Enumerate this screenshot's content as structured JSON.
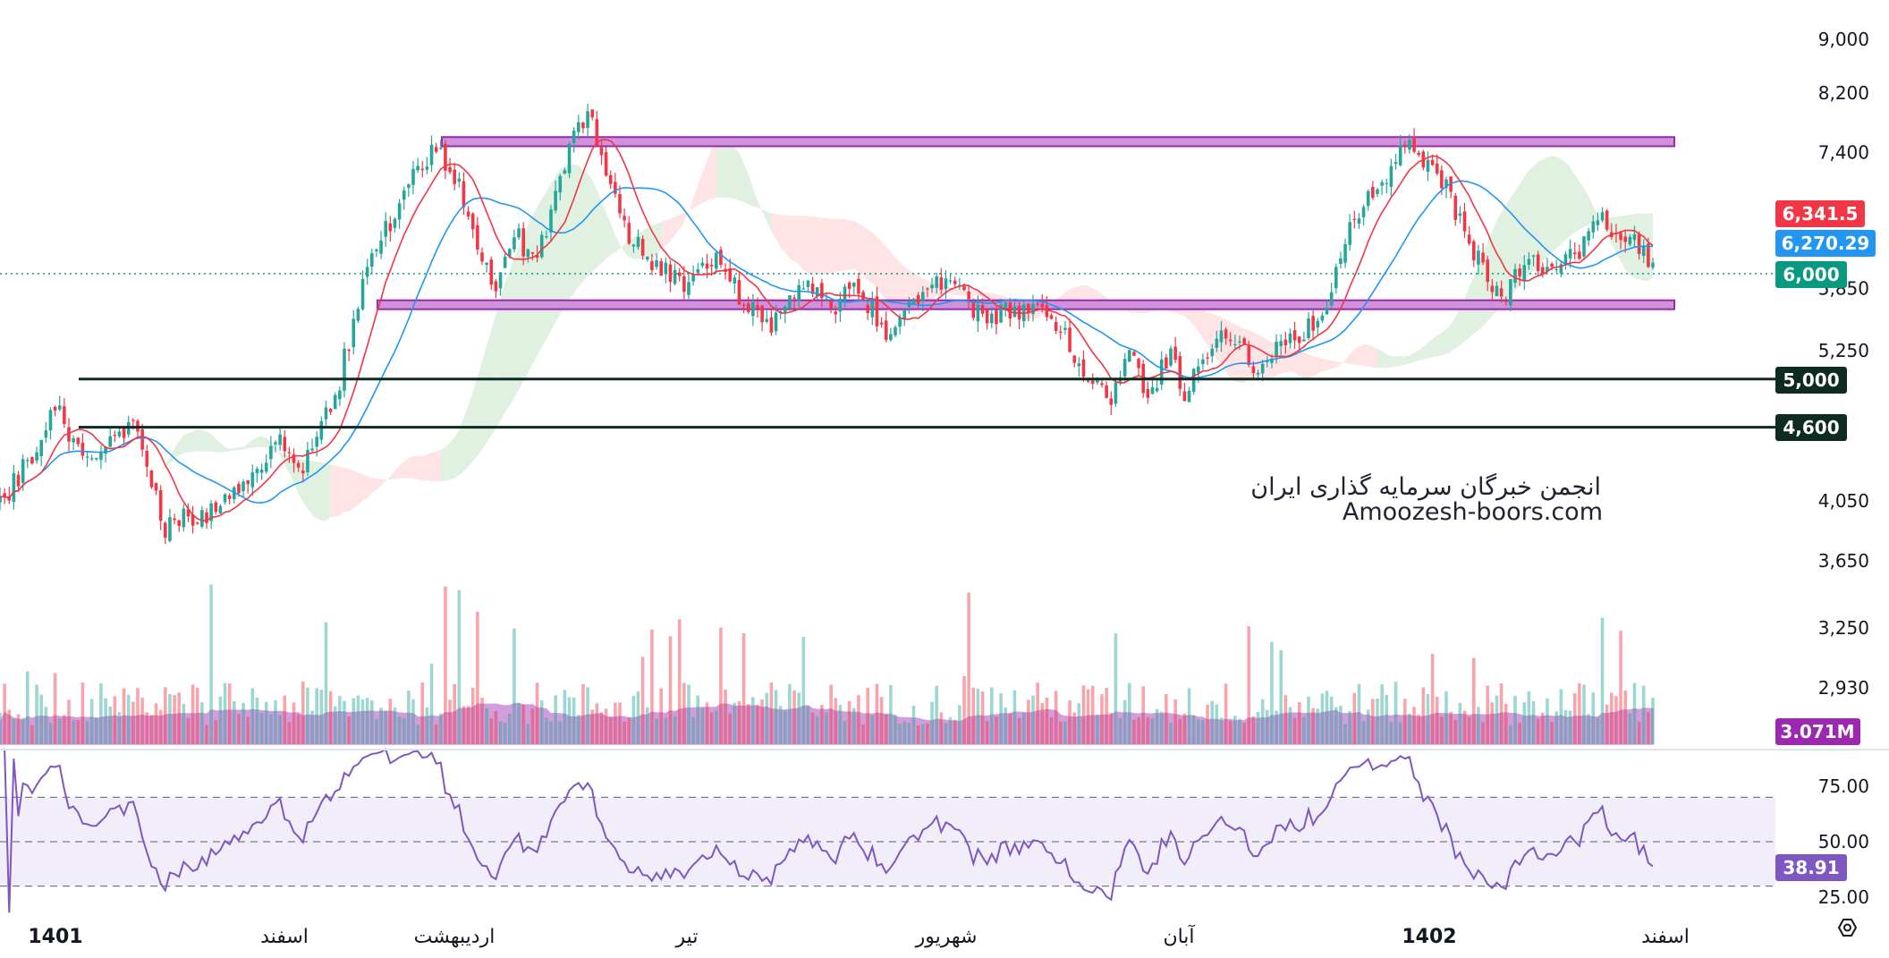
{
  "watermark": {
    "line1": "انجمن خبرگان سرمایه گذاری ایران",
    "line2": "Amoozesh-boors.com"
  },
  "badges": {
    "last_close": "6,341.5",
    "ma_value": "6,270.29",
    "current_price": "6,000",
    "support_5000": "5,000",
    "support_4600": "4,600",
    "volume_ma": "3.071M",
    "rsi_value": "38.91"
  },
  "colors": {
    "up": "#26a69a",
    "down": "#f23645",
    "ma_fast": "#f23645",
    "ma_slow": "#2196f3",
    "zone": "#ce93d8",
    "zone_border": "#9c27b0",
    "support": "#0d2b22",
    "rsi_line": "#7e57c2",
    "rsi_band": "#7e57c2",
    "volume_ma_fill": "#9c27b0",
    "cloud_green": "#c8e6c9",
    "cloud_red": "#ffcdd2"
  },
  "settings_icon": "settings-hexagon-icon",
  "chart_data": {
    "type": "candlestick",
    "price_axis": {
      "scale": "log",
      "ticks": [
        "9,000",
        "8,200",
        "7,400",
        "5,850",
        "5,250",
        "4,050",
        "3,650",
        "3,250",
        "2,930"
      ],
      "tick_values": [
        9000,
        8200,
        7400,
        5850,
        5250,
        4050,
        3650,
        3250,
        2930
      ]
    },
    "time_axis": {
      "labels": [
        "1401",
        "اسفند",
        "اردیبهشت",
        "تیر",
        "شهریور",
        "آبان",
        "1402",
        "اسفند"
      ],
      "bold": [
        true,
        false,
        false,
        false,
        false,
        false,
        true,
        false
      ]
    },
    "horizontal_lines": [
      {
        "price": 5000,
        "label": "5,000"
      },
      {
        "price": 4600,
        "label": "4,600"
      }
    ],
    "resistance_zone": {
      "from": 7480,
      "to": 7600
    },
    "support_zone": {
      "from": 5650,
      "to": 5730
    },
    "current_price": 6000,
    "waypoints": [
      [
        0,
        4000
      ],
      [
        6,
        4330
      ],
      [
        12,
        4750
      ],
      [
        18,
        4380
      ],
      [
        24,
        4500
      ],
      [
        30,
        4600
      ],
      [
        36,
        3850
      ],
      [
        42,
        3950
      ],
      [
        48,
        4000
      ],
      [
        54,
        4200
      ],
      [
        60,
        4500
      ],
      [
        66,
        4250
      ],
      [
        74,
        5000
      ],
      [
        80,
        6000
      ],
      [
        86,
        6700
      ],
      [
        90,
        7100
      ],
      [
        95,
        7450
      ],
      [
        100,
        7000
      ],
      [
        104,
        6150
      ],
      [
        108,
        5850
      ],
      [
        112,
        6450
      ],
      [
        116,
        6150
      ],
      [
        120,
        6600
      ],
      [
        125,
        7600
      ],
      [
        128,
        8000
      ],
      [
        132,
        7250
      ],
      [
        136,
        6500
      ],
      [
        140,
        6200
      ],
      [
        145,
        6000
      ],
      [
        150,
        5900
      ],
      [
        156,
        6250
      ],
      [
        160,
        5850
      ],
      [
        164,
        5650
      ],
      [
        168,
        5420
      ],
      [
        172,
        5800
      ],
      [
        176,
        5900
      ],
      [
        182,
        5700
      ],
      [
        186,
        5900
      ],
      [
        190,
        5650
      ],
      [
        194,
        5350
      ],
      [
        198,
        5750
      ],
      [
        204,
        5900
      ],
      [
        208,
        5820
      ],
      [
        214,
        5550
      ],
      [
        218,
        5600
      ],
      [
        224,
        5650
      ],
      [
        228,
        5550
      ],
      [
        232,
        5420
      ],
      [
        236,
        5000
      ],
      [
        242,
        4850
      ],
      [
        246,
        5200
      ],
      [
        250,
        4850
      ],
      [
        255,
        5250
      ],
      [
        258,
        4850
      ],
      [
        262,
        5150
      ],
      [
        266,
        5450
      ],
      [
        270,
        5300
      ],
      [
        274,
        5100
      ],
      [
        280,
        5350
      ],
      [
        286,
        5500
      ],
      [
        290,
        5800
      ],
      [
        294,
        6600
      ],
      [
        300,
        7000
      ],
      [
        306,
        7450
      ],
      [
        312,
        7300
      ],
      [
        316,
        6800
      ],
      [
        320,
        6350
      ],
      [
        324,
        5950
      ],
      [
        328,
        5800
      ],
      [
        332,
        6150
      ],
      [
        336,
        6050
      ],
      [
        340,
        6100
      ],
      [
        344,
        6200
      ],
      [
        348,
        6650
      ],
      [
        352,
        6400
      ],
      [
        356,
        6350
      ],
      [
        360,
        6000
      ]
    ],
    "candle_count": 361,
    "ma_fast_length": 10,
    "ma_slow_length": 25,
    "last_close": 6341.5,
    "ma_value": 6270.29,
    "volume_ma": "3.071M",
    "rsi": {
      "ticks": [
        "75.00",
        "50.00",
        "25.00"
      ],
      "tick_values": [
        75,
        50,
        25
      ],
      "band": [
        30,
        70
      ],
      "mid": 50,
      "value": 38.91
    }
  }
}
